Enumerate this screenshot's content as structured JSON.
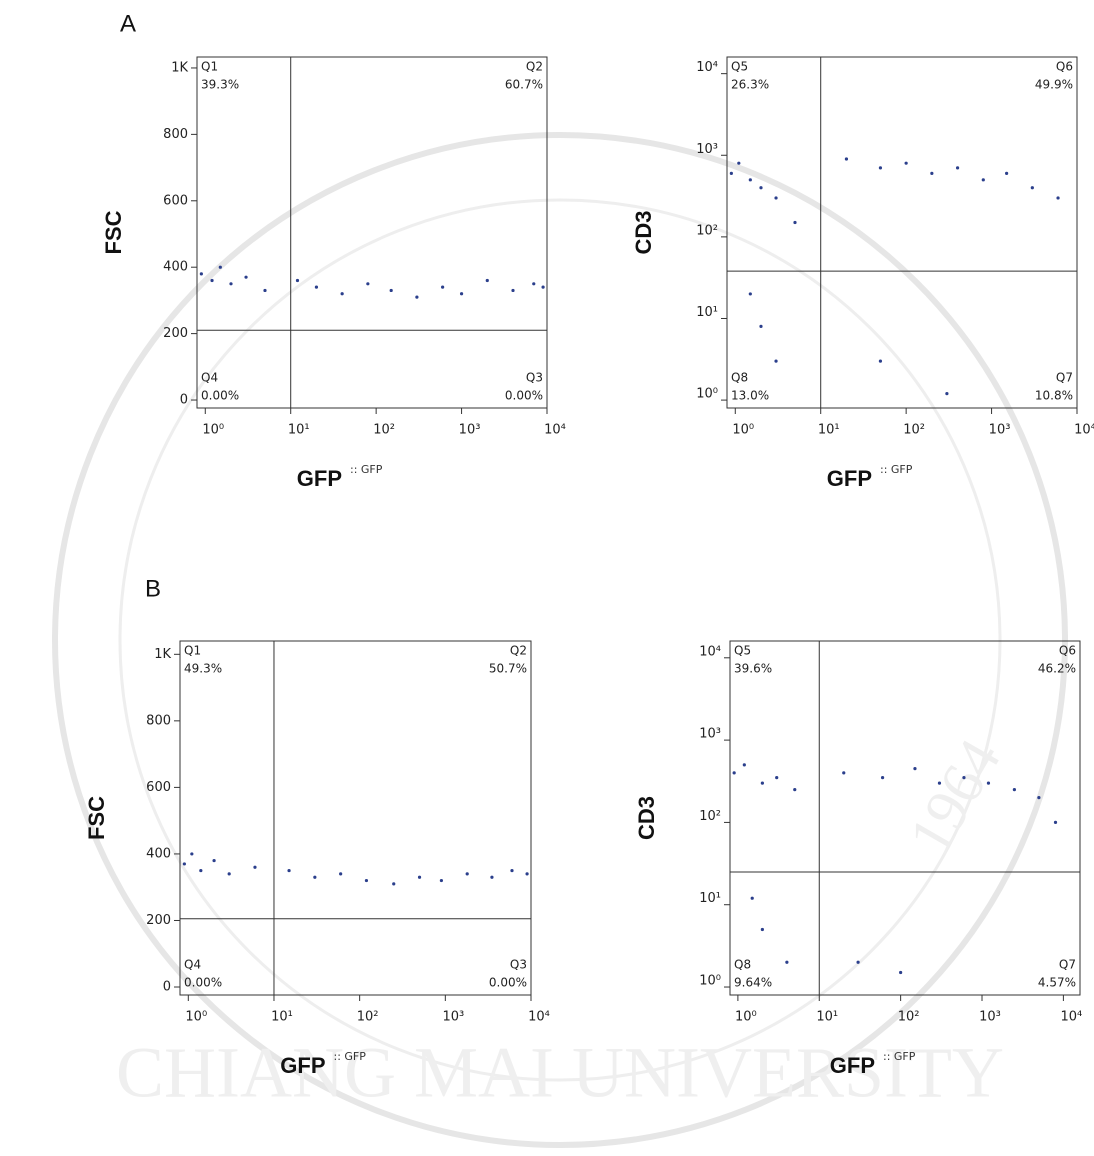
{
  "panels": [
    {
      "label": "A"
    },
    {
      "label": "B"
    }
  ],
  "watermark": {
    "text": "CHIANG MAI UNIVERSITY",
    "year": "1964"
  },
  "chart_data": [
    {
      "type": "scatter",
      "x_label": "GFP",
      "x_param": ":: GFP",
      "y_label": "FSC",
      "xscale": "log",
      "yscale": "linear",
      "xlim": [
        0.8,
        10000
      ],
      "ylim": [
        -24,
        1033
      ],
      "xticks": [
        {
          "value": 1,
          "label": "10⁰"
        },
        {
          "value": 10,
          "label": "10¹"
        },
        {
          "value": 100,
          "label": "10²"
        },
        {
          "value": 1000,
          "label": "10³"
        },
        {
          "value": 10000,
          "label": "10⁴"
        }
      ],
      "yticks": [
        0,
        200,
        400,
        600,
        800,
        {
          "value": 1000,
          "label": "1K"
        }
      ],
      "gate_x": 10,
      "gate_y": 210,
      "color": "#2b3f8c",
      "quadrants": {
        "names": [
          "Q1",
          "Q2",
          "Q3",
          "Q4"
        ],
        "values": [
          39.3,
          60.7,
          0,
          0
        ],
        "value_labels": [
          "39.3%",
          "60.7%",
          "0.00%",
          "0.00%"
        ]
      },
      "x": [
        0.9,
        1.2,
        1.5,
        2,
        3,
        5,
        12,
        20,
        40,
        80,
        150,
        300,
        600,
        1000,
        2000,
        4000,
        7000,
        9000
      ],
      "y": [
        380,
        360,
        400,
        350,
        370,
        330,
        360,
        340,
        320,
        350,
        330,
        310,
        340,
        320,
        360,
        330,
        350,
        340
      ]
    },
    {
      "type": "scatter",
      "x_label": "GFP",
      "x_param": ":: GFP",
      "y_label": "CD3",
      "xscale": "log",
      "yscale": "log",
      "xlim": [
        0.8,
        10000
      ],
      "ylim": [
        0.8,
        16000
      ],
      "xticks": [
        {
          "value": 1,
          "label": "10⁰"
        },
        {
          "value": 10,
          "label": "10¹"
        },
        {
          "value": 100,
          "label": "10²"
        },
        {
          "value": 1000,
          "label": "10³"
        },
        {
          "value": 10000,
          "label": "10⁴"
        }
      ],
      "yticks": [
        {
          "value": 1,
          "label": "10⁰"
        },
        {
          "value": 10,
          "label": "10¹"
        },
        {
          "value": 100,
          "label": "10²"
        },
        {
          "value": 1000,
          "label": "10³"
        },
        {
          "value": 10000,
          "label": "10⁴"
        }
      ],
      "gate_x": 10,
      "gate_y": 38,
      "color": "#2b3f8c",
      "quadrants": {
        "names": [
          "Q5",
          "Q6",
          "Q7",
          "Q8"
        ],
        "values": [
          26.3,
          49.9,
          10.8,
          13.0
        ],
        "value_labels": [
          "26.3%",
          "49.9%",
          "10.8%",
          "13.0%"
        ]
      },
      "x": [
        0.9,
        1.1,
        1.5,
        2,
        3,
        5,
        1.5,
        2,
        3,
        20,
        50,
        100,
        200,
        400,
        800,
        1500,
        3000,
        6000,
        300,
        50
      ],
      "y": [
        600,
        800,
        500,
        400,
        300,
        150,
        20,
        8,
        3,
        900,
        700,
        800,
        600,
        700,
        500,
        600,
        400,
        300,
        1.2,
        3
      ]
    },
    {
      "type": "scatter",
      "x_label": "GFP",
      "x_param": ":: GFP",
      "y_label": "FSC",
      "xscale": "log",
      "yscale": "linear",
      "xlim": [
        0.8,
        10000
      ],
      "ylim": [
        -24,
        1040
      ],
      "xticks": [
        {
          "value": 1,
          "label": "10⁰"
        },
        {
          "value": 10,
          "label": "10¹"
        },
        {
          "value": 100,
          "label": "10²"
        },
        {
          "value": 1000,
          "label": "10³"
        },
        {
          "value": 10000,
          "label": "10⁴"
        }
      ],
      "yticks": [
        0,
        200,
        400,
        600,
        800,
        {
          "value": 1000,
          "label": "1K"
        }
      ],
      "gate_x": 10,
      "gate_y": 205,
      "color": "#2b3f8c",
      "quadrants": {
        "names": [
          "Q1",
          "Q2",
          "Q3",
          "Q4"
        ],
        "values": [
          49.3,
          50.7,
          0,
          0
        ],
        "value_labels": [
          "49.3%",
          "50.7%",
          "0.00%",
          "0.00%"
        ]
      },
      "x": [
        0.9,
        1.1,
        1.4,
        2,
        3,
        6,
        15,
        30,
        60,
        120,
        250,
        500,
        900,
        1800,
        3500,
        6000,
        9000
      ],
      "y": [
        370,
        400,
        350,
        380,
        340,
        360,
        350,
        330,
        340,
        320,
        310,
        330,
        320,
        340,
        330,
        350,
        340
      ]
    },
    {
      "type": "scatter",
      "x_label": "GFP",
      "x_param": ":: GFP",
      "y_label": "CD3",
      "xscale": "log",
      "yscale": "log",
      "xlim": [
        0.8,
        16000
      ],
      "ylim": [
        0.8,
        16000
      ],
      "xticks": [
        {
          "value": 1,
          "label": "10⁰"
        },
        {
          "value": 10,
          "label": "10¹"
        },
        {
          "value": 100,
          "label": "10²"
        },
        {
          "value": 1000,
          "label": "10³"
        },
        {
          "value": 10000,
          "label": "10⁴"
        }
      ],
      "yticks": [
        {
          "value": 1,
          "label": "10⁰"
        },
        {
          "value": 10,
          "label": "10¹"
        },
        {
          "value": 100,
          "label": "10²"
        },
        {
          "value": 1000,
          "label": "10³"
        },
        {
          "value": 10000,
          "label": "10⁴"
        }
      ],
      "gate_x": 10,
      "gate_y": 25,
      "color": "#2b3f8c",
      "quadrants": {
        "names": [
          "Q5",
          "Q6",
          "Q7",
          "Q8"
        ],
        "values": [
          39.6,
          46.2,
          4.57,
          9.64
        ],
        "value_labels": [
          "39.6%",
          "46.2%",
          "4.57%",
          "9.64%"
        ]
      },
      "x": [
        0.9,
        1.2,
        2,
        3,
        5,
        1.5,
        2,
        4,
        20,
        60,
        150,
        300,
        600,
        1200,
        2500,
        5000,
        8000,
        100,
        30
      ],
      "y": [
        400,
        500,
        300,
        350,
        250,
        12,
        5,
        2,
        400,
        350,
        450,
        300,
        350,
        300,
        250,
        200,
        100,
        1.5,
        2
      ]
    }
  ]
}
